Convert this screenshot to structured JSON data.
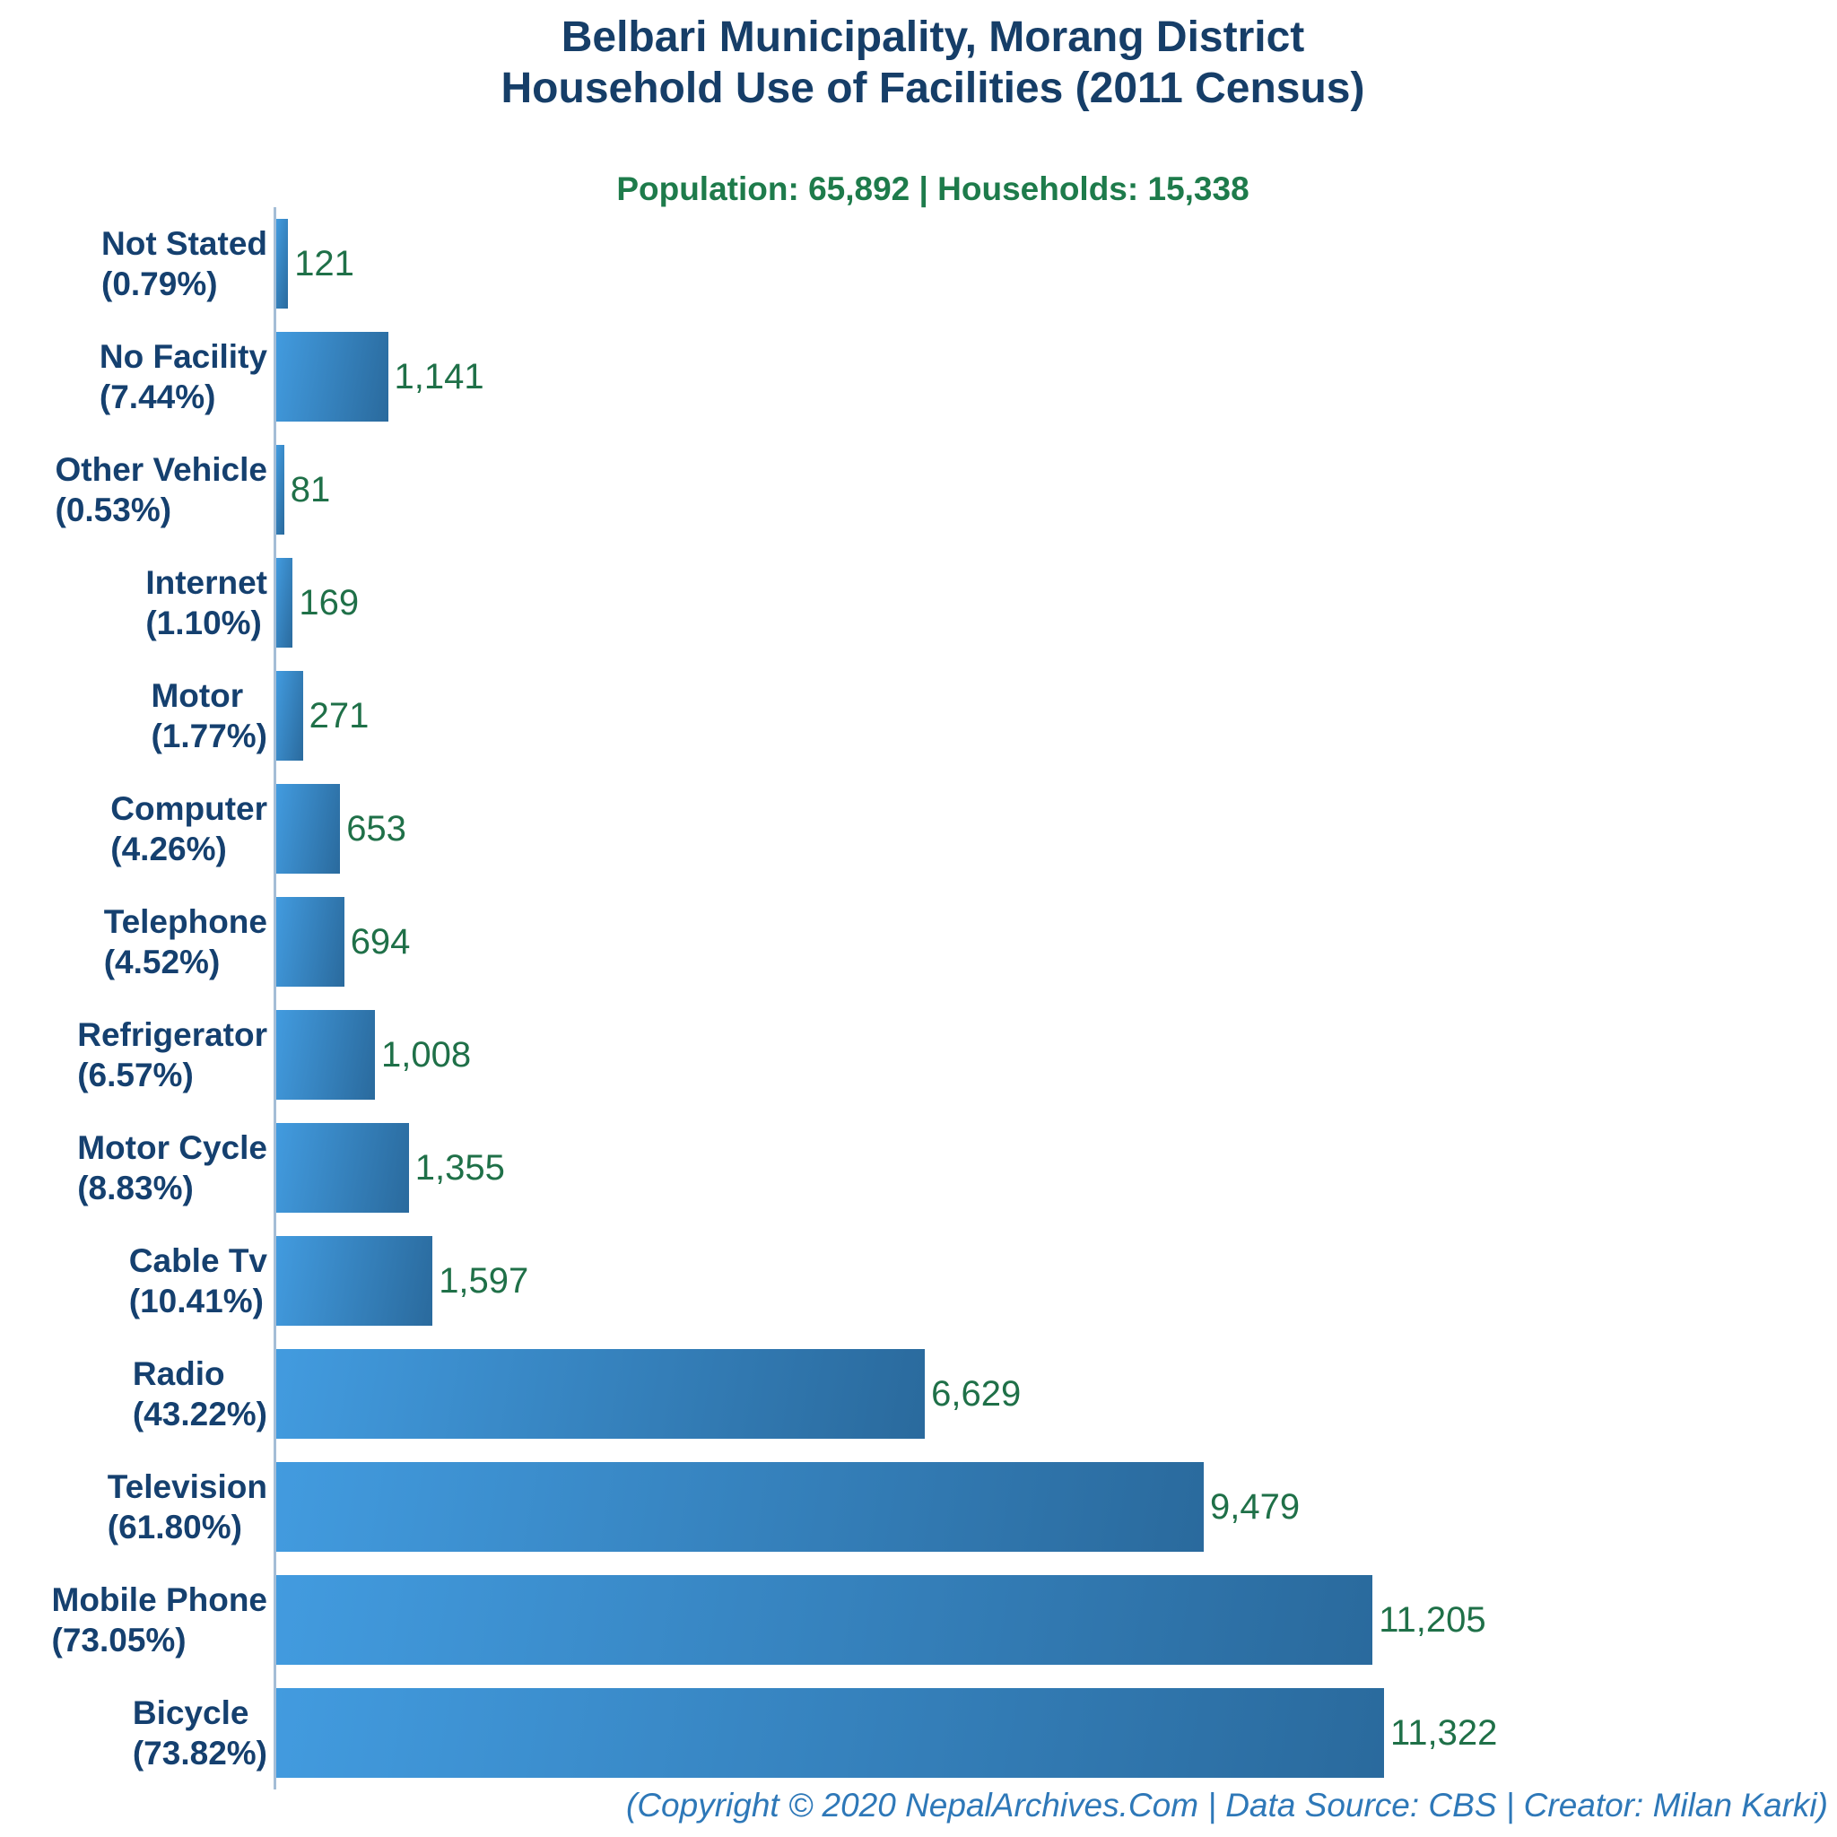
{
  "header": {
    "title_line1": "Belbari Municipality, Morang District",
    "title_line2": "Household Use of Facilities (2011 Census)",
    "subtitle": "Population: 65,892 | Households: 15,338"
  },
  "footer": {
    "text": "(Copyright © 2020 NepalArchives.Com | Data Source: CBS | Creator: Milan Karki)"
  },
  "colors": {
    "title_navy": "#163e68",
    "label_navy": "#15406f",
    "subtitle_green": "#1e7b4b",
    "value_green": "#1f7048",
    "footer_blue": "#2e78b8",
    "axis_line": "#a4bdd6",
    "bar_gradient": [
      "#429bdf",
      "#2a6a9d"
    ]
  },
  "chart_data": {
    "type": "bar",
    "orientation": "horizontal",
    "title": "Belbari Municipality, Morang District — Household Use of Facilities (2011 Census)",
    "subtitle": "Population: 65,892 | Households: 15,338",
    "xlabel": "",
    "ylabel": "",
    "grid": false,
    "legend": false,
    "xlim": [
      0,
      12000
    ],
    "categories": [
      "Not Stated",
      "No Facility",
      "Other Vehicle",
      "Internet",
      "Motor",
      "Computer",
      "Telephone",
      "Refrigerator",
      "Motor Cycle",
      "Cable Tv",
      "Radio",
      "Television",
      "Mobile Phone",
      "Bicycle"
    ],
    "percent_labels": [
      "(0.79%)",
      "(7.44%)",
      "(0.53%)",
      "(1.10%)",
      "(1.77%)",
      "(4.26%)",
      "(4.52%)",
      "(6.57%)",
      "(8.83%)",
      "(10.41%)",
      "(43.22%)",
      "(61.80%)",
      "(73.05%)",
      "(73.82%)"
    ],
    "values": [
      121,
      1141,
      81,
      169,
      271,
      653,
      694,
      1008,
      1355,
      1597,
      6629,
      9479,
      11205,
      11322
    ],
    "value_labels": [
      "121",
      "1,141",
      "81",
      "169",
      "271",
      "653",
      "694",
      "1,008",
      "1,355",
      "1,597",
      "6,629",
      "9,479",
      "11,205",
      "11,322"
    ]
  }
}
